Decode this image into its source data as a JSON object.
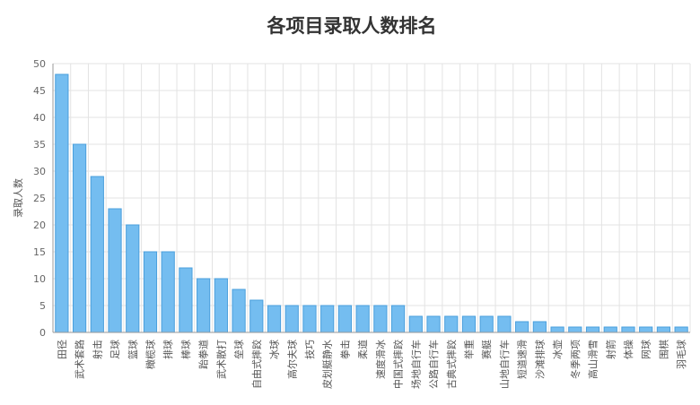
{
  "chart_data": {
    "type": "bar",
    "title": "各项目录取人数排名",
    "ylabel": "录取人数",
    "xlabel": "",
    "ylim": [
      0,
      50
    ],
    "yticks": [
      0,
      5,
      10,
      15,
      20,
      25,
      30,
      35,
      40,
      45,
      50
    ],
    "grid": true,
    "legend": "none",
    "bar_color": "#74bdf0",
    "categories": [
      "田径",
      "武术套路",
      "射击",
      "足球",
      "篮球",
      "橄榄球",
      "排球",
      "棒球",
      "跆拳道",
      "武术散打",
      "垒球",
      "自由式摔跤",
      "冰球",
      "高尔夫球",
      "技巧",
      "皮划艇静水",
      "拳击",
      "柔道",
      "速度滑冰",
      "中国式摔跤",
      "场地自行车",
      "公路自行车",
      "古典式摔跤",
      "举重",
      "赛艇",
      "山地自行车",
      "短道速滑",
      "沙滩排球",
      "冰壶",
      "冬季两项",
      "高山滑雪",
      "射箭",
      "体操",
      "网球",
      "围棋",
      "羽毛球"
    ],
    "values": [
      48,
      35,
      29,
      23,
      20,
      15,
      15,
      12,
      10,
      10,
      8,
      6,
      5,
      5,
      5,
      5,
      5,
      5,
      5,
      5,
      3,
      3,
      3,
      3,
      3,
      3,
      2,
      2,
      1,
      1,
      1,
      1,
      1,
      1,
      1,
      1
    ]
  }
}
